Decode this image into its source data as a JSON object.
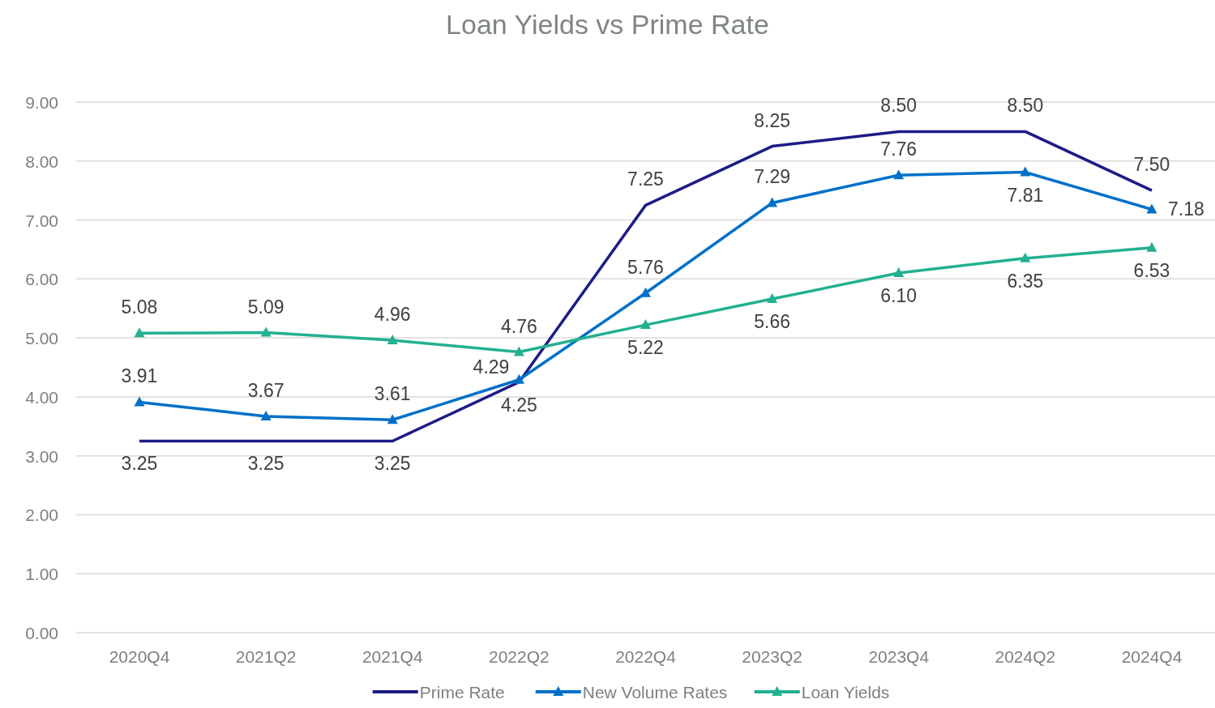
{
  "chart_data": {
    "type": "line",
    "title": "Loan Yields vs Prime Rate",
    "categories": [
      "2020Q4",
      "2021Q2",
      "2021Q4",
      "2022Q2",
      "2022Q4",
      "2023Q2",
      "2023Q4",
      "2024Q2",
      "2024Q4"
    ],
    "series": [
      {
        "name": "Prime Rate",
        "color": "#1c1c86",
        "marker": "none",
        "values": [
          3.25,
          3.25,
          3.25,
          4.25,
          7.25,
          8.25,
          8.5,
          8.5,
          7.5
        ],
        "value_labels": [
          "3.25",
          "3.25",
          "3.25",
          "4.25",
          "7.25",
          "8.25",
          "8.50",
          "8.50",
          "7.50"
        ]
      },
      {
        "name": "New Volume Rates",
        "color": "#0070c8",
        "marker": "triangle",
        "values": [
          3.91,
          3.67,
          3.61,
          4.29,
          5.76,
          7.29,
          7.76,
          7.81,
          7.18
        ],
        "value_labels": [
          "3.91",
          "3.67",
          "3.61",
          "4.29",
          "5.76",
          "7.29",
          "7.76",
          "7.81",
          "7.18"
        ]
      },
      {
        "name": "Loan Yields",
        "color": "#22b091",
        "marker": "triangle",
        "values": [
          5.08,
          5.09,
          4.96,
          4.76,
          5.22,
          5.66,
          6.1,
          6.35,
          6.53
        ],
        "value_labels": [
          "5.08",
          "5.09",
          "4.96",
          "4.76",
          "5.22",
          "5.66",
          "6.10",
          "6.35",
          "6.53"
        ]
      }
    ],
    "ylim": [
      0,
      9
    ],
    "yticks": [
      {
        "value": 0,
        "label": "0.00"
      },
      {
        "value": 1,
        "label": "1.00"
      },
      {
        "value": 2,
        "label": "2.00"
      },
      {
        "value": 3,
        "label": "3.00"
      },
      {
        "value": 4,
        "label": "4.00"
      },
      {
        "value": 5,
        "label": "5.00"
      },
      {
        "value": 6,
        "label": "6.00"
      },
      {
        "value": 7,
        "label": "7.00"
      },
      {
        "value": 8,
        "label": "8.00"
      },
      {
        "value": 9,
        "label": "9.00"
      }
    ],
    "grid": "y",
    "legend": "bottom",
    "line_style": "solid"
  }
}
